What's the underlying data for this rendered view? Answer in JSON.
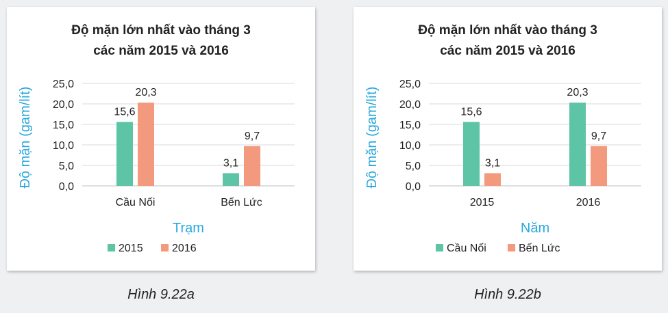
{
  "figures": [
    {
      "caption": "Hình 9.22a",
      "colors": [
        "#5ec4a6",
        "#f39a7e"
      ]
    },
    {
      "caption": "Hình 9.22b",
      "colors": [
        "#5ec4a6",
        "#f39a7e"
      ]
    }
  ],
  "chart_data": [
    {
      "type": "bar",
      "title_lines": [
        "Độ mặn lớn nhất vào tháng 3",
        "các năm 2015 và 2016"
      ],
      "xlabel": "Trạm",
      "ylabel": "Độ mặn (gam/lít)",
      "categories": [
        "Cầu Nối",
        "Bến Lức"
      ],
      "series": [
        {
          "name": "2015",
          "values": [
            15.6,
            3.1
          ],
          "labels": [
            "15,6",
            "3,1"
          ]
        },
        {
          "name": "2016",
          "values": [
            20.3,
            9.7
          ],
          "labels": [
            "20,3",
            "9,7"
          ]
        }
      ],
      "ylim": [
        0,
        25
      ],
      "yticks": [
        0,
        5,
        10,
        15,
        20,
        25
      ],
      "ytick_labels": [
        "0,0",
        "5,0",
        "10,0",
        "15,0",
        "20,0",
        "25,0"
      ],
      "grid": true,
      "legend_position": "bottom"
    },
    {
      "type": "bar",
      "title_lines": [
        "Độ mặn lớn nhất vào tháng 3",
        "các năm 2015 và 2016"
      ],
      "xlabel": "Năm",
      "ylabel": "Độ mặn (gam/lít)",
      "categories": [
        "2015",
        "2016"
      ],
      "series": [
        {
          "name": "Cầu Nối",
          "values": [
            15.6,
            20.3
          ],
          "labels": [
            "15,6",
            "20,3"
          ]
        },
        {
          "name": "Bến Lức",
          "values": [
            3.1,
            9.7
          ],
          "labels": [
            "3,1",
            "9,7"
          ]
        }
      ],
      "ylim": [
        0,
        25
      ],
      "yticks": [
        0,
        5,
        10,
        15,
        20,
        25
      ],
      "ytick_labels": [
        "0,0",
        "5,0",
        "10,0",
        "15,0",
        "20,0",
        "25,0"
      ],
      "grid": true,
      "legend_position": "bottom"
    }
  ]
}
